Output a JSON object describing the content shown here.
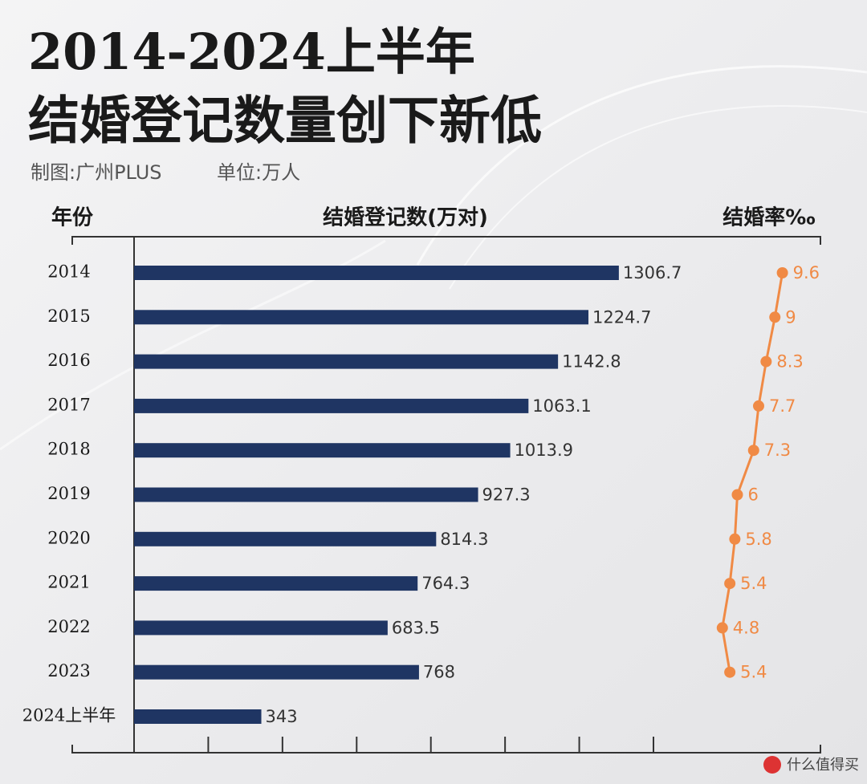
{
  "chart_data": {
    "type": "bar",
    "orientation": "horizontal",
    "title": [
      "2014-2024上半年",
      "结婚登记数量创下新低"
    ],
    "source": "制图:广州PLUS",
    "unit": "单位:万人",
    "ylabel": "年份",
    "categories": [
      "2014",
      "2015",
      "2016",
      "2017",
      "2018",
      "2019",
      "2020",
      "2021",
      "2022",
      "2023",
      "2024上半年"
    ],
    "xlim": [
      0,
      1400
    ],
    "xticks": [
      0,
      200,
      400,
      600,
      800,
      1000,
      1200,
      1400
    ],
    "x2lim": [
      0,
      12
    ],
    "series": [
      {
        "name": "结婚登记数(万对)",
        "type": "bar",
        "color": "#1f3563",
        "values": [
          1306.7,
          1224.7,
          1142.8,
          1063.1,
          1013.9,
          927.3,
          814.3,
          764.3,
          683.5,
          768,
          343
        ]
      },
      {
        "name": "结婚率‰",
        "type": "line",
        "axis": "x2",
        "color": "#f08a45",
        "values": [
          9.6,
          9,
          8.3,
          7.7,
          7.3,
          6,
          5.8,
          5.4,
          4.8,
          5.4,
          null
        ]
      }
    ],
    "watermark": "什么值得买"
  }
}
